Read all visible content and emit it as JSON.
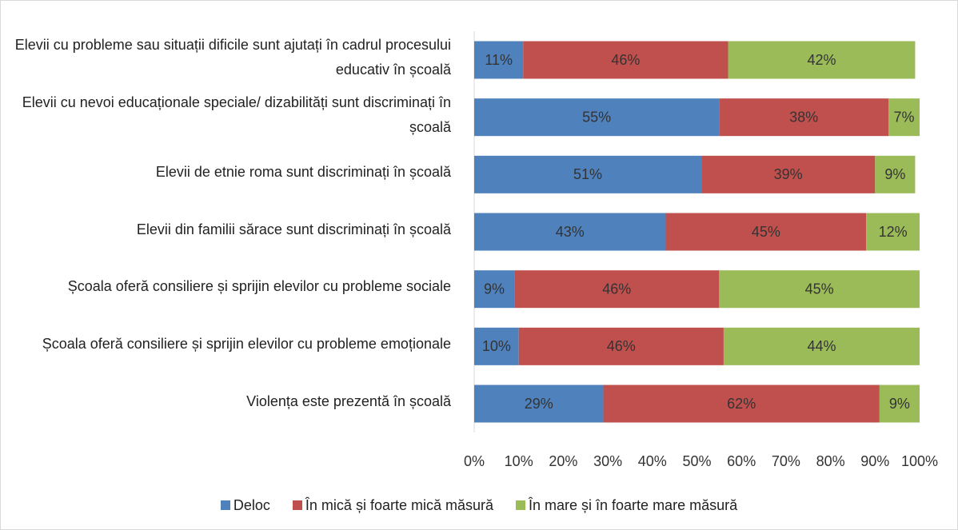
{
  "chart_data": {
    "type": "stacked_bar_horizontal",
    "categories": [
      "Elevii cu  probleme sau situații dificile sunt ajutați în cadrul procesului educativ în școală",
      "Elevii cu nevoi educaționale speciale/ dizabilități sunt discriminați în școală",
      "Elevii de etnie roma sunt discriminați în școală",
      "Elevii din familii sărace sunt discriminați în școală",
      "Școala oferă consiliere și sprijin elevilor cu probleme sociale",
      "Școala oferă consiliere și sprijin elevilor cu probleme emoționale",
      "Violența este prezentă în școală"
    ],
    "series": [
      {
        "name": "Deloc",
        "color": "#4f81bd",
        "values": [
          11,
          55,
          51,
          43,
          9,
          10,
          29
        ],
        "value_labels": [
          "11%",
          "55%",
          "51%",
          "43%",
          "9%",
          "10%",
          "29%"
        ]
      },
      {
        "name": "În mică și foarte mică măsură",
        "color": "#c0504d",
        "values": [
          46,
          38,
          39,
          45,
          46,
          46,
          62
        ],
        "value_labels": [
          "46%",
          "38%",
          "39%",
          "45%",
          "46%",
          "46%",
          "62%"
        ]
      },
      {
        "name": "În mare și în foarte mare măsură",
        "color": "#9bbb59",
        "values": [
          42,
          7,
          9,
          12,
          45,
          44,
          9
        ],
        "value_labels": [
          "42%",
          "7%",
          "9%",
          "12%",
          "45%",
          "44%",
          "9%"
        ]
      }
    ],
    "xlim": [
      0,
      100
    ],
    "xticks": [
      {
        "value": 0,
        "label": "0%"
      },
      {
        "value": 10,
        "label": "10%"
      },
      {
        "value": 20,
        "label": "20%"
      },
      {
        "value": 30,
        "label": "30%"
      },
      {
        "value": 40,
        "label": "40%"
      },
      {
        "value": 50,
        "label": "50%"
      },
      {
        "value": 60,
        "label": "60%"
      },
      {
        "value": 70,
        "label": "70%"
      },
      {
        "value": 80,
        "label": "80%"
      },
      {
        "value": 90,
        "label": "90%"
      },
      {
        "value": 100,
        "label": "100%"
      }
    ],
    "legend": "bottom"
  }
}
